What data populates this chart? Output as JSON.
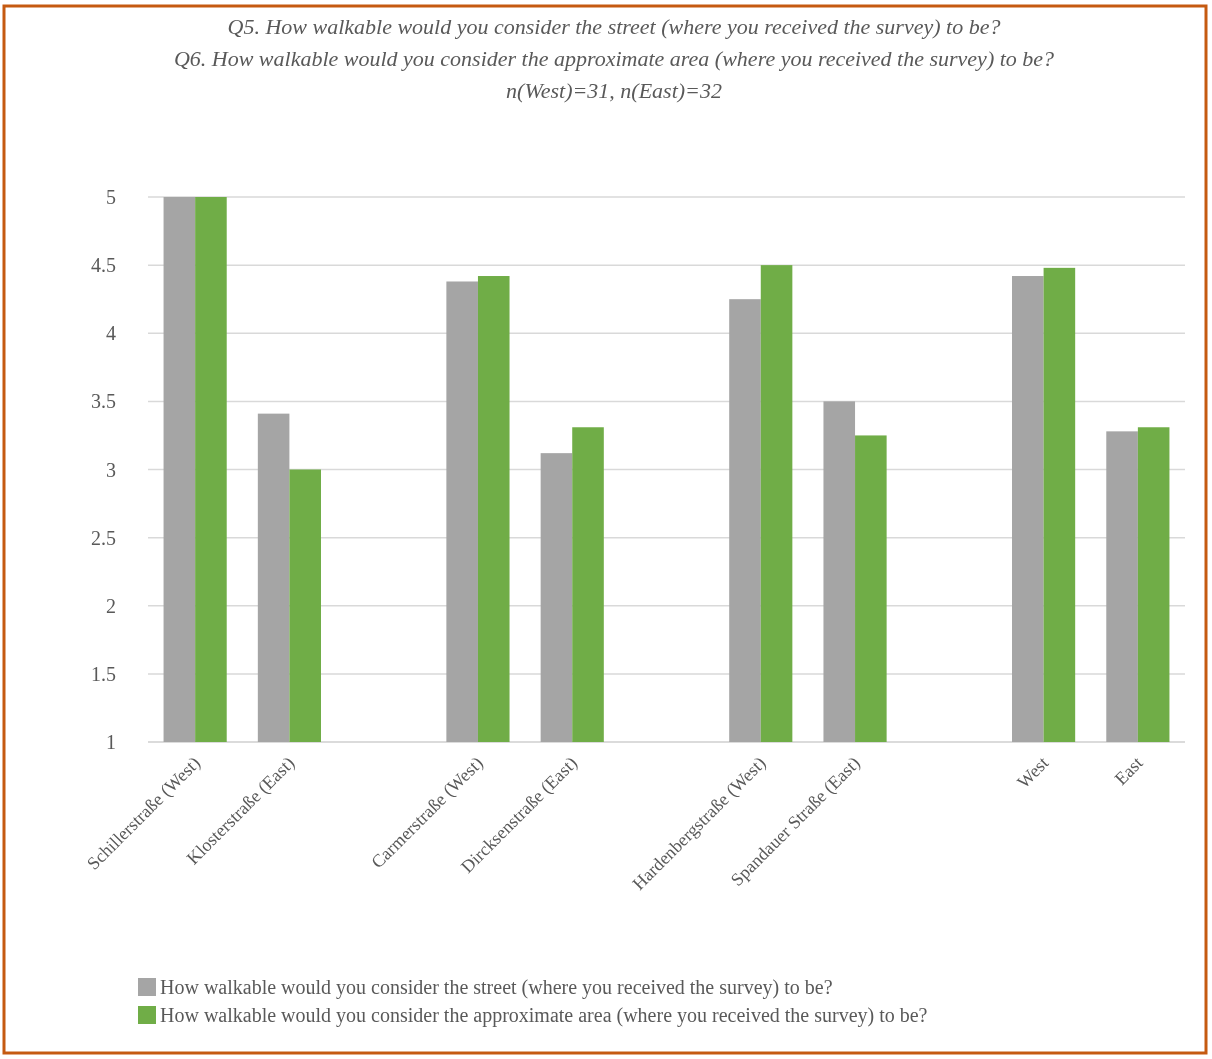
{
  "chart_data": {
    "type": "bar",
    "title": "Q5. How walkable would you consider the street (where you received the survey) to be?",
    "subtitle": "Q6. How walkable would you consider the approximate area (where you received the survey) to be?",
    "annotations": [
      "n(West)=31, n(East)=32"
    ],
    "categories": [
      "Schillerstraße (West)",
      "Klosterstraße (East)",
      null,
      "Carmerstraße (West)",
      "Dircksenstraße (East)",
      null,
      "Hardenbergstraße (West)",
      "Spandauer Straße (East)",
      null,
      "West",
      "East"
    ],
    "series": [
      {
        "name": "How walkable would you consider the street (where you received the survey) to be?",
        "color": "#a5a5a5",
        "values": [
          5,
          3.41,
          null,
          4.38,
          3.12,
          null,
          4.25,
          3.5,
          null,
          4.42,
          3.28
        ]
      },
      {
        "name": "How walkable would you consider the approximate area (where you received the survey) to be?",
        "color": "#70ad47",
        "values": [
          5,
          3.0,
          null,
          4.42,
          3.31,
          null,
          4.5,
          3.25,
          null,
          4.48,
          3.31
        ]
      }
    ],
    "ylim": [
      1,
      5
    ],
    "yticks": [
      1,
      1.5,
      2,
      2.5,
      3,
      3.5,
      4,
      4.5,
      5
    ],
    "grid": "y",
    "legend": "bottom"
  }
}
